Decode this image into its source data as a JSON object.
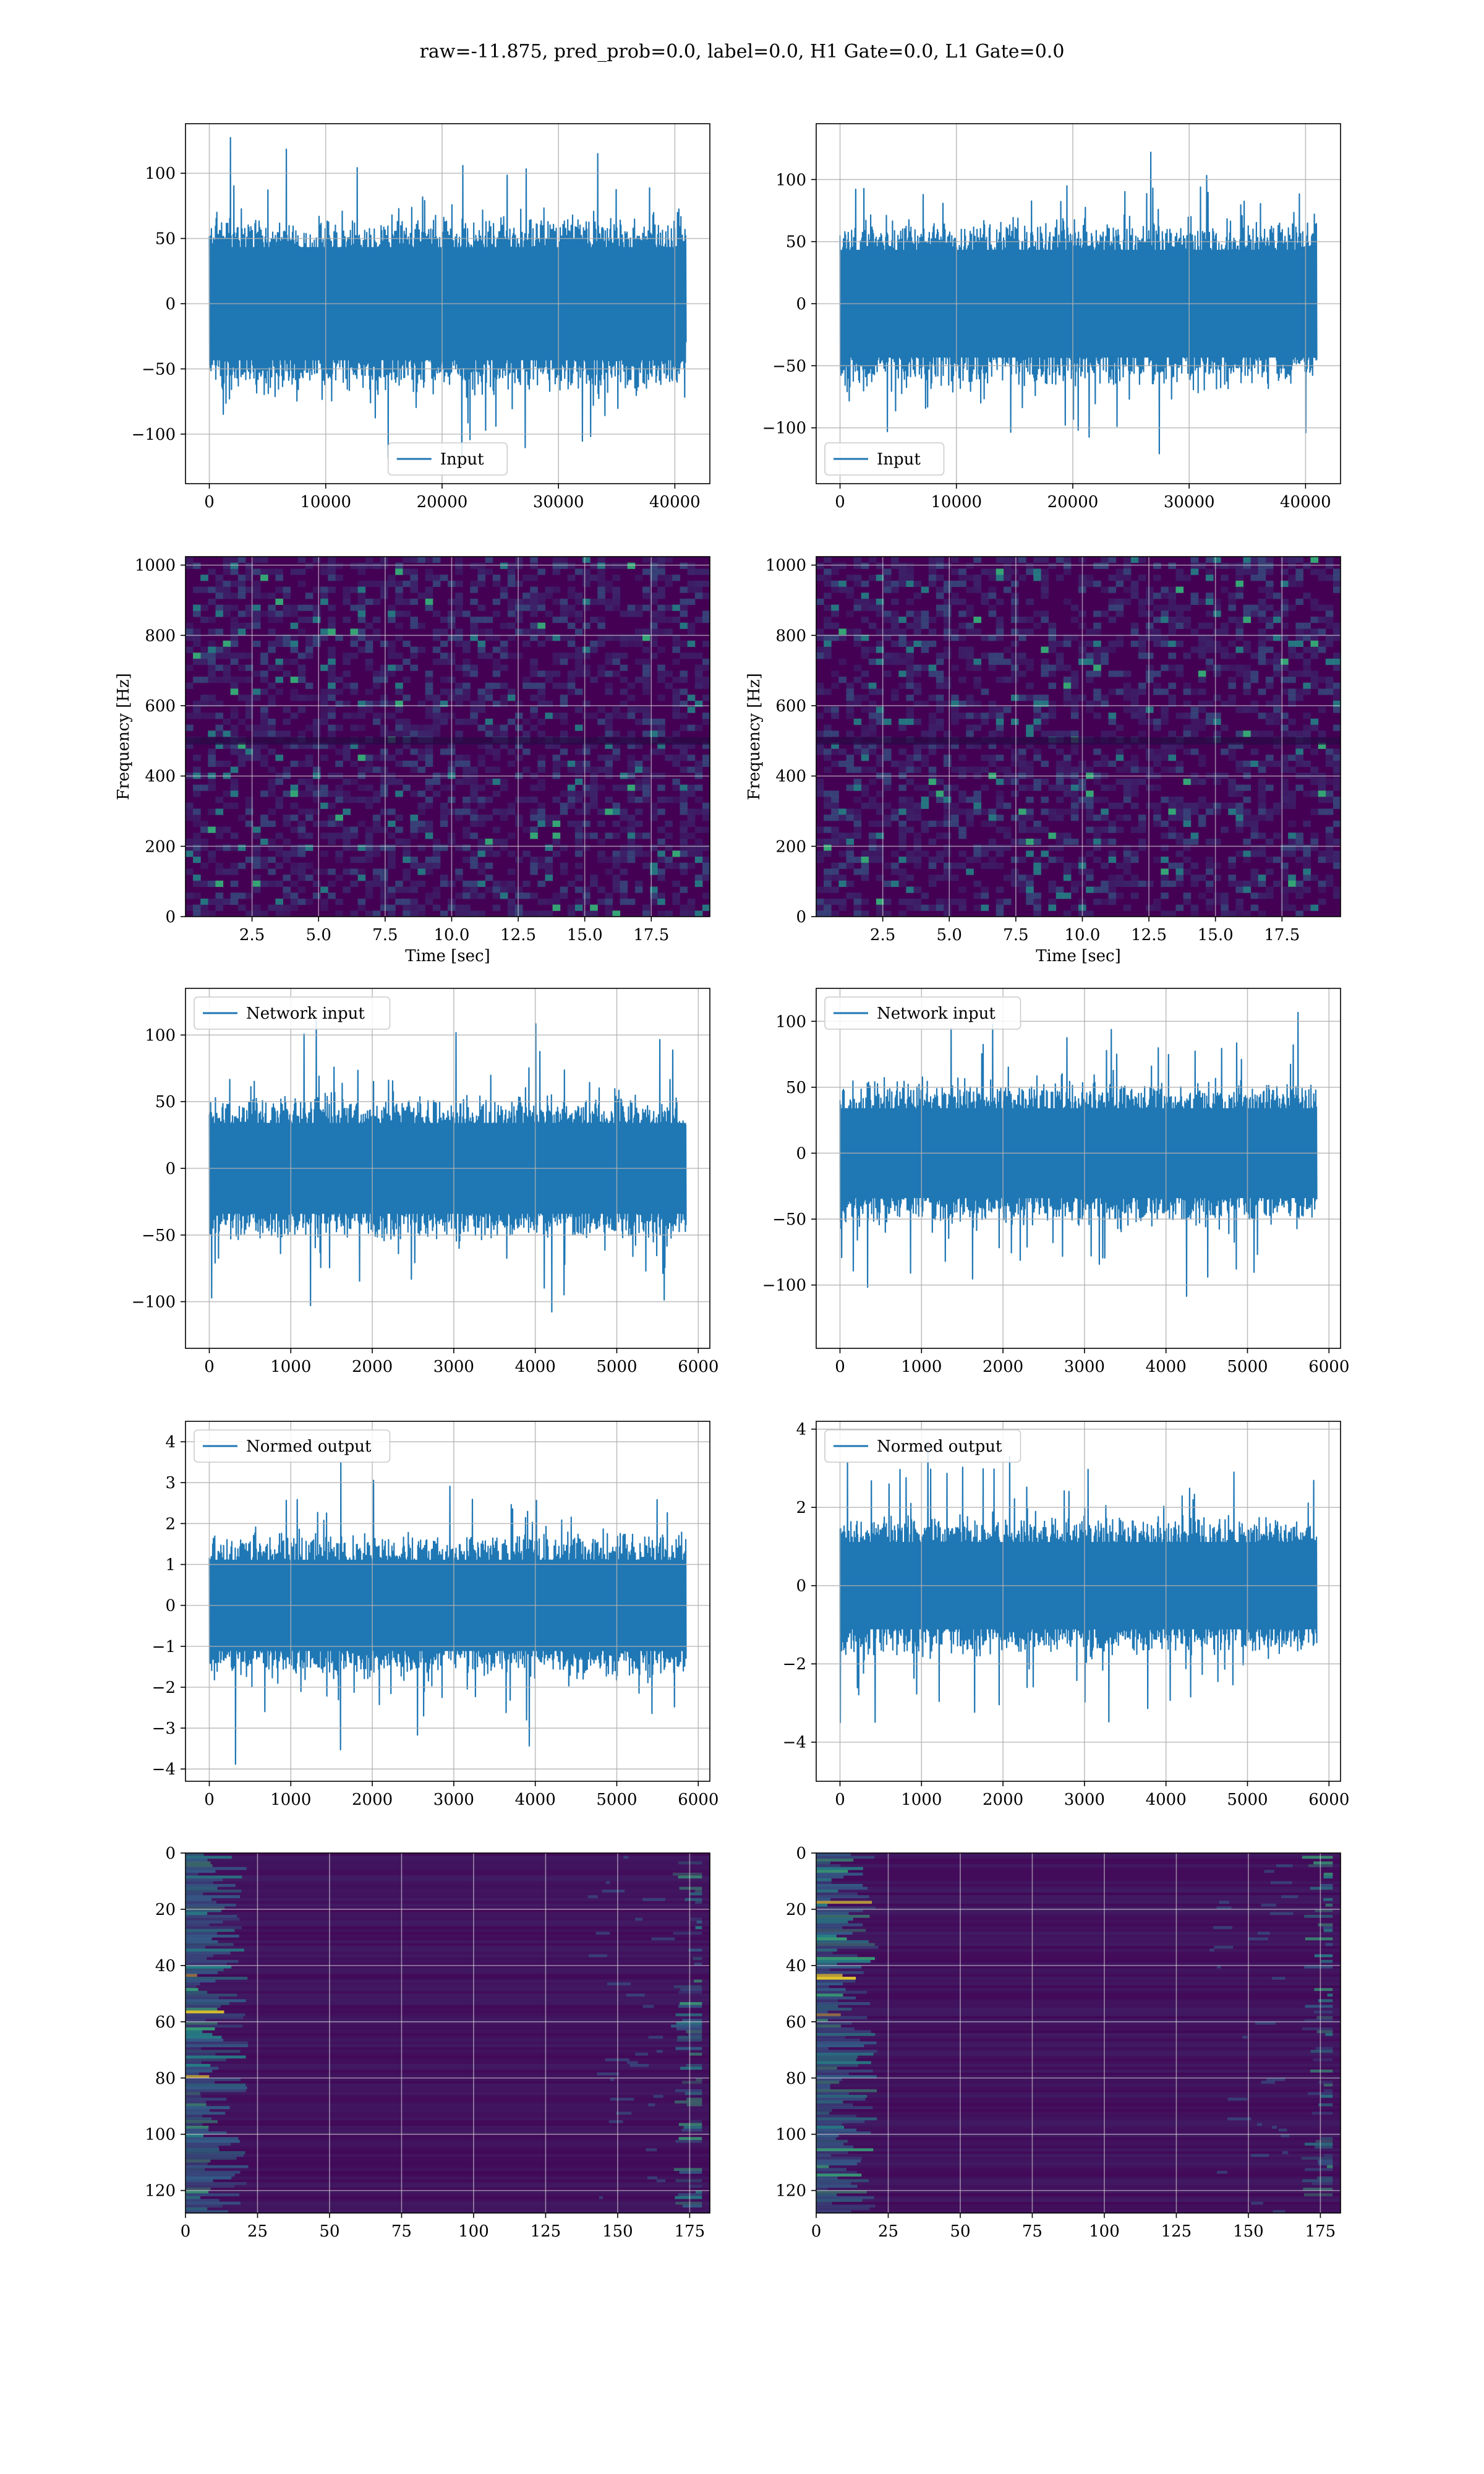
{
  "figure": {
    "title": "raw=-11.875, pred_prob=0.0, label=0.0, H1 Gate=0.0, L1 Gate=0.0"
  },
  "colors": {
    "series": "#1f77b4",
    "grid": "#b0b0b0",
    "viridis_dark": "#440154",
    "viridis_blue": "#31688e",
    "viridis_teal": "#21918c",
    "viridis_green": "#35b779",
    "viridis_yellow": "#fde725"
  },
  "chart_data": [
    {
      "id": "h1-input",
      "type": "line",
      "legend": "Input",
      "legend_position": "lower-center",
      "x_range": [
        0,
        40960
      ],
      "xlim": [
        -2048,
        43008
      ],
      "ylim": [
        -138,
        138
      ],
      "x_ticks": [
        0,
        10000,
        20000,
        30000,
        40000
      ],
      "y_ticks": [
        -100,
        -50,
        0,
        50,
        100
      ],
      "envelope": {
        "typical": 70,
        "peak": 125
      },
      "xlabel": "",
      "ylabel": "",
      "grid": true
    },
    {
      "id": "l1-input",
      "type": "line",
      "legend": "Input",
      "legend_position": "lower-left",
      "x_range": [
        0,
        40960
      ],
      "xlim": [
        -2048,
        43008
      ],
      "ylim": [
        -145,
        145
      ],
      "x_ticks": [
        0,
        10000,
        20000,
        30000,
        40000
      ],
      "y_ticks": [
        -100,
        -50,
        0,
        50,
        100
      ],
      "envelope": {
        "typical": 70,
        "peak": 125
      },
      "xlabel": "",
      "ylabel": "",
      "grid": true
    },
    {
      "id": "h1-spectrogram",
      "type": "heatmap",
      "xlim": [
        0,
        19.7
      ],
      "ylim": [
        0,
        1024
      ],
      "x_ticks": [
        2.5,
        5.0,
        7.5,
        10.0,
        12.5,
        15.0,
        17.5
      ],
      "y_ticks": [
        0,
        200,
        400,
        600,
        800,
        1000
      ],
      "xlabel": "Time [sec]",
      "ylabel": "Frequency [Hz]",
      "colormap": "viridis",
      "grid": true
    },
    {
      "id": "l1-spectrogram",
      "type": "heatmap",
      "xlim": [
        0,
        19.7
      ],
      "ylim": [
        0,
        1024
      ],
      "x_ticks": [
        2.5,
        5.0,
        7.5,
        10.0,
        12.5,
        15.0,
        17.5
      ],
      "y_ticks": [
        0,
        200,
        400,
        600,
        800,
        1000
      ],
      "xlabel": "Time [sec]",
      "ylabel": "Frequency [Hz]",
      "colormap": "viridis",
      "grid": true
    },
    {
      "id": "h1-network-input",
      "type": "line",
      "legend": "Network input",
      "legend_position": "upper-left",
      "x_range": [
        0,
        5850
      ],
      "xlim": [
        -292,
        6142
      ],
      "ylim": [
        -135,
        135
      ],
      "x_ticks": [
        0,
        1000,
        2000,
        3000,
        4000,
        5000,
        6000
      ],
      "y_ticks": [
        -100,
        -50,
        0,
        50,
        100
      ],
      "envelope": {
        "typical": 55,
        "peak": 118
      },
      "xlabel": "",
      "ylabel": "",
      "grid": true
    },
    {
      "id": "l1-network-input",
      "type": "line",
      "legend": "Network input",
      "legend_position": "upper-left",
      "x_range": [
        0,
        5850
      ],
      "xlim": [
        -292,
        6142
      ],
      "ylim": [
        -148,
        125
      ],
      "x_ticks": [
        0,
        1000,
        2000,
        3000,
        4000,
        5000,
        6000
      ],
      "y_ticks": [
        -100,
        -50,
        0,
        50,
        100
      ],
      "envelope": {
        "typical": 55,
        "peak": 120
      },
      "xlabel": "",
      "ylabel": "",
      "grid": true
    },
    {
      "id": "h1-normed-output",
      "type": "line",
      "legend": "Normed output",
      "legend_position": "upper-left",
      "x_range": [
        0,
        5850
      ],
      "xlim": [
        -292,
        6142
      ],
      "ylim": [
        -4.3,
        4.5
      ],
      "x_ticks": [
        0,
        1000,
        2000,
        3000,
        4000,
        5000,
        6000
      ],
      "y_ticks": [
        -4,
        -3,
        -2,
        -1,
        0,
        1,
        2,
        3,
        4
      ],
      "envelope": {
        "typical": 1.8,
        "peak": 4.0
      },
      "xlabel": "",
      "ylabel": "",
      "grid": true
    },
    {
      "id": "l1-normed-output",
      "type": "line",
      "legend": "Normed output",
      "legend_position": "upper-left",
      "x_range": [
        0,
        5850
      ],
      "xlim": [
        -292,
        6142
      ],
      "ylim": [
        -5.0,
        4.2
      ],
      "x_ticks": [
        0,
        1000,
        2000,
        3000,
        4000,
        5000,
        6000
      ],
      "y_ticks": [
        -4,
        -2,
        0,
        2,
        4
      ],
      "envelope": {
        "typical": 1.8,
        "peak": 4.1
      },
      "xlabel": "",
      "ylabel": "",
      "grid": true
    },
    {
      "id": "h1-feature-map",
      "type": "heatmap",
      "xlim": [
        0,
        182
      ],
      "ylim": [
        128,
        0
      ],
      "x_ticks": [
        0,
        25,
        50,
        75,
        100,
        125,
        150,
        175
      ],
      "y_ticks": [
        0,
        20,
        40,
        60,
        80,
        100,
        120
      ],
      "xlabel": "",
      "ylabel": "",
      "colormap": "viridis",
      "grid": true
    },
    {
      "id": "l1-feature-map",
      "type": "heatmap",
      "xlim": [
        0,
        182
      ],
      "ylim": [
        128,
        0
      ],
      "x_ticks": [
        0,
        25,
        50,
        75,
        100,
        125,
        150,
        175
      ],
      "y_ticks": [
        0,
        20,
        40,
        60,
        80,
        100,
        120
      ],
      "xlabel": "",
      "ylabel": "",
      "colormap": "viridis",
      "grid": true
    }
  ]
}
